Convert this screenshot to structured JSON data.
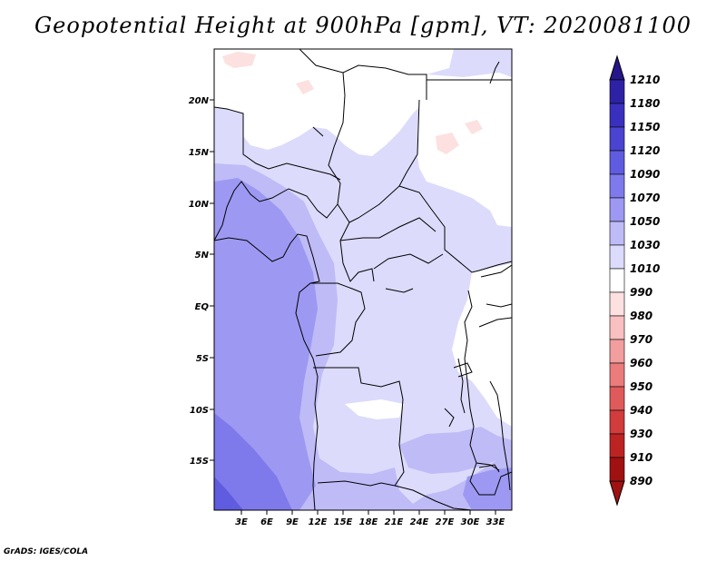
{
  "title": "Geopotential Height at 900hPa [gpm], VT: 2020081100",
  "credit": "GrADS: IGES/COLA",
  "map": {
    "lat_labels": [
      "20N",
      "15N",
      "10N",
      "5N",
      "EQ",
      "5S",
      "10S",
      "15S"
    ],
    "lon_labels": [
      "3E",
      "6E",
      "9E",
      "12E",
      "15E",
      "18E",
      "21E",
      "24E",
      "27E",
      "30E",
      "33E"
    ]
  },
  "colorbar": {
    "labels": [
      "1210",
      "1180",
      "1150",
      "1120",
      "1090",
      "1070",
      "1050",
      "1030",
      "1010",
      "990",
      "980",
      "970",
      "960",
      "950",
      "940",
      "930",
      "910",
      "890"
    ],
    "colors": [
      "#26168a",
      "#2e22a4",
      "#3a30be",
      "#4a44d0",
      "#5f5ce0",
      "#7e7aeb",
      "#9d99f2",
      "#bebbf7",
      "#dcdbfb",
      "#ffffff",
      "#fde0e0",
      "#f8c0c0",
      "#f29e9e",
      "#ea7c7c",
      "#df5a5a",
      "#d13c3c",
      "#bc2424",
      "#a01212"
    ]
  }
}
